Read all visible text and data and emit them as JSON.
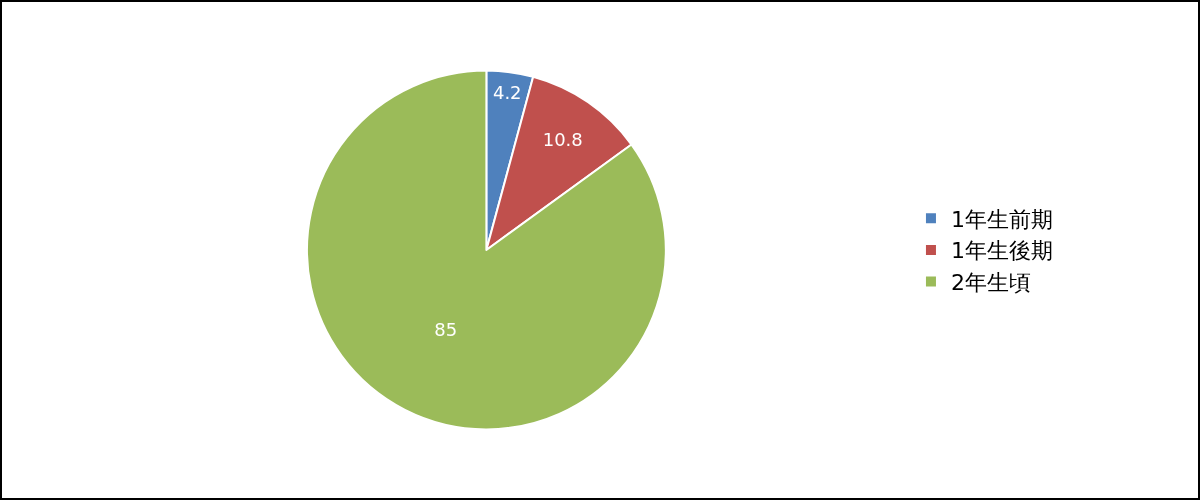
{
  "chart_data": {
    "type": "pie",
    "categories": [
      "1年生前期",
      "1年生後期",
      "2年生頃"
    ],
    "values": [
      4.2,
      10.8,
      85
    ],
    "colors": [
      "#4f81bd",
      "#c0504d",
      "#9bbb59"
    ],
    "data_labels": true,
    "legend": "right"
  }
}
